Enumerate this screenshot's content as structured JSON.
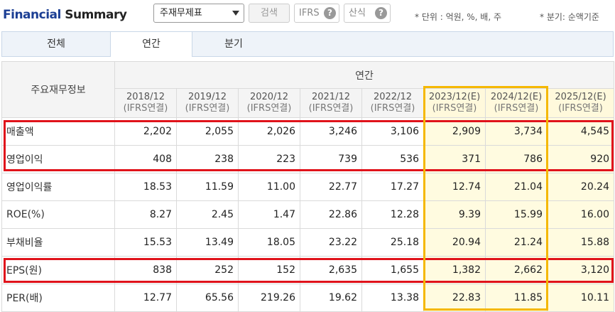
{
  "header": {
    "title_part1": "Financial",
    "title_part2": "Summary",
    "select_value": "주재무제표",
    "search_label": "검색",
    "ifrs_label": "IFRS",
    "formula_label": "산식",
    "help_glyph": "?",
    "unit_note": "* 단위 : 억원, %, 배, 주",
    "quarter_note": "* 분기: 순액기준"
  },
  "tabs": [
    {
      "label": "전체"
    },
    {
      "label": "연간"
    },
    {
      "label": "분기"
    }
  ],
  "table": {
    "corner": "주요재무정보",
    "group": "연간",
    "columns": [
      {
        "period": "2018/12",
        "basis": "(IFRS연결)"
      },
      {
        "period": "2019/12",
        "basis": "(IFRS연결)"
      },
      {
        "period": "2020/12",
        "basis": "(IFRS연결)"
      },
      {
        "period": "2021/12",
        "basis": "(IFRS연결)"
      },
      {
        "period": "2022/12",
        "basis": "(IFRS연결)"
      },
      {
        "period": "2023/12(E)",
        "basis": "(IFRS연결)"
      },
      {
        "period": "2024/12(E)",
        "basis": "(IFRS연결)"
      },
      {
        "period": "2025/12(E)",
        "basis": "(IFRS연결)"
      }
    ],
    "rows": [
      {
        "label": "매출액",
        "values": [
          "2,202",
          "2,055",
          "2,026",
          "3,246",
          "3,106",
          "2,909",
          "3,734",
          "4,545"
        ]
      },
      {
        "label": "영업이익",
        "values": [
          "408",
          "238",
          "223",
          "739",
          "536",
          "371",
          "786",
          "920"
        ]
      },
      {
        "label": "영업이익률",
        "values": [
          "18.53",
          "11.59",
          "11.00",
          "22.77",
          "17.27",
          "12.74",
          "21.04",
          "20.24"
        ]
      },
      {
        "label": "ROE(%)",
        "values": [
          "8.27",
          "2.45",
          "1.47",
          "22.86",
          "12.28",
          "9.39",
          "15.99",
          "16.00"
        ]
      },
      {
        "label": "부채비율",
        "values": [
          "15.53",
          "13.49",
          "18.05",
          "23.22",
          "25.18",
          "20.94",
          "21.24",
          "15.88"
        ]
      },
      {
        "label": "EPS(원)",
        "values": [
          "838",
          "252",
          "152",
          "2,635",
          "1,655",
          "1,382",
          "2,662",
          "3,120"
        ]
      },
      {
        "label": "PER(배)",
        "values": [
          "12.77",
          "65.56",
          "219.26",
          "19.62",
          "13.38",
          "22.83",
          "11.85",
          "10.11"
        ]
      }
    ]
  },
  "colors": {
    "highlight_red": "#e0131b",
    "highlight_yellow": "#f5b800",
    "estimate_bg": "#fffbe0",
    "title_blue": "#1c3f94"
  }
}
